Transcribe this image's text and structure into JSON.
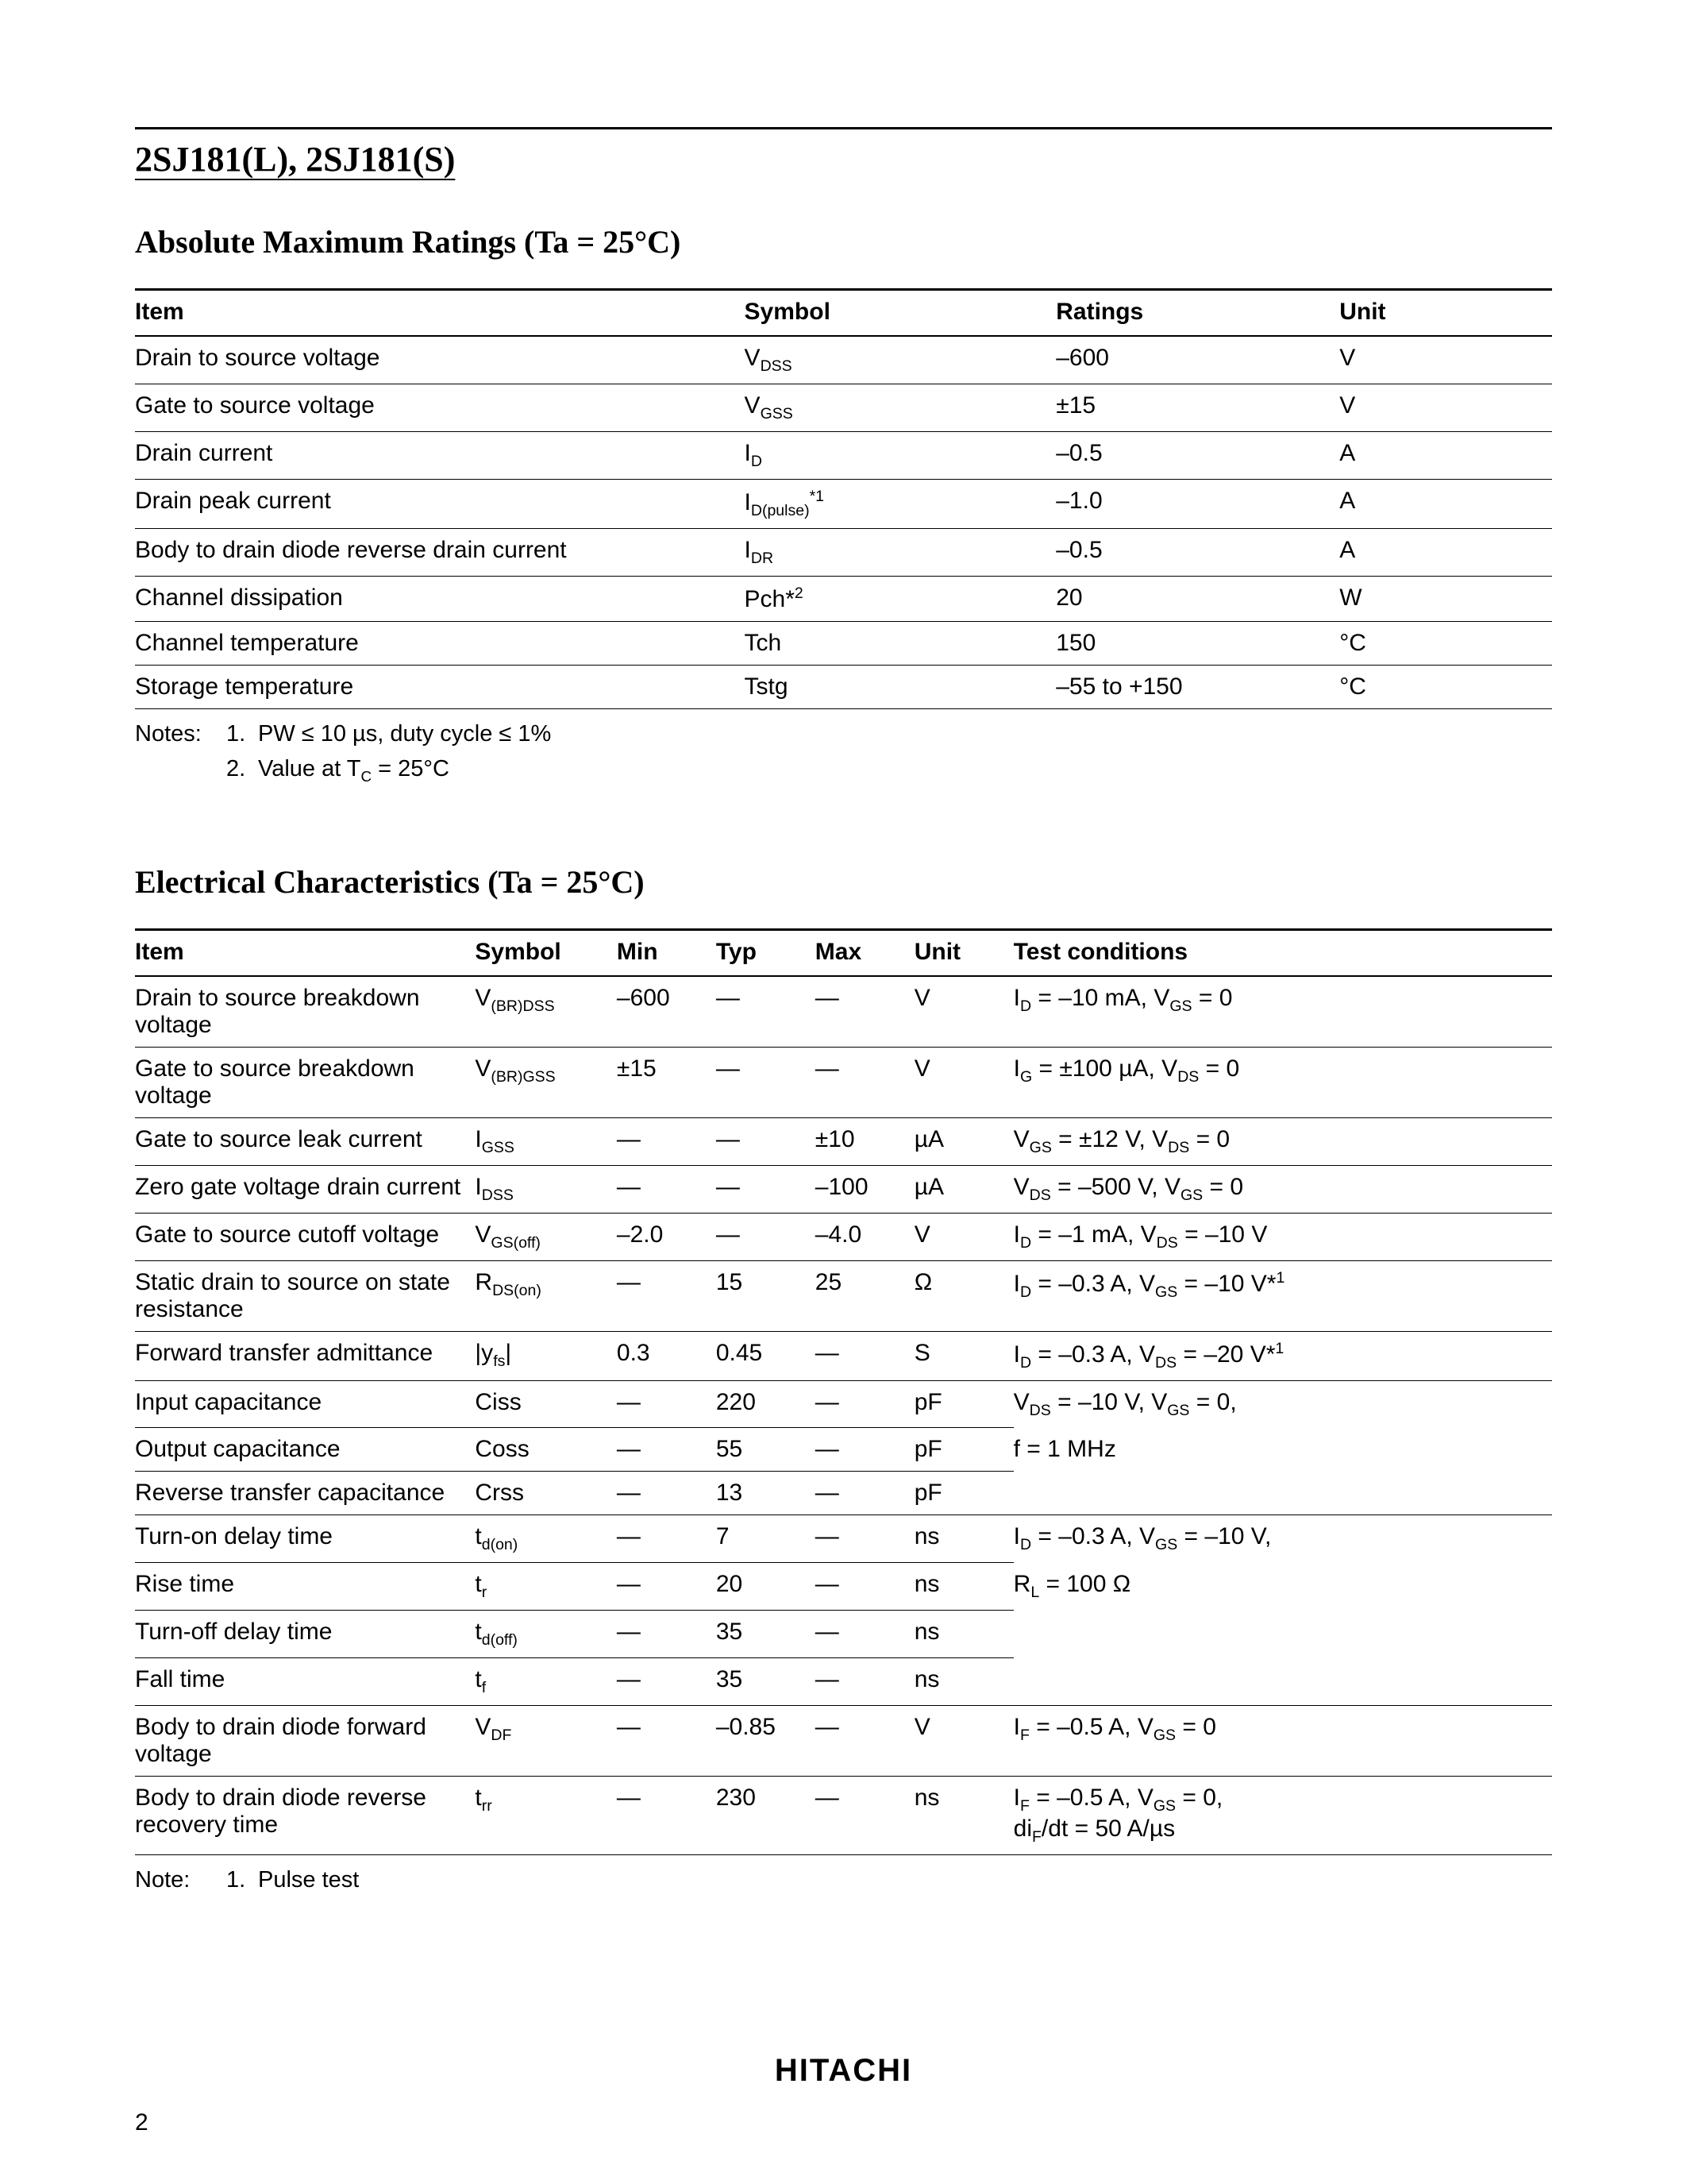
{
  "page": {
    "part_title": "2SJ181(L), 2SJ181(S)",
    "brand": "HITACHI",
    "page_number": "2"
  },
  "section1": {
    "title_bold": "Absolute Maximum Ratings",
    "title_rest": " (Ta = 25°C)",
    "headers": {
      "item": "Item",
      "symbol": "Symbol",
      "ratings": "Ratings",
      "unit": "Unit"
    },
    "rows": [
      {
        "item": "Drain to source voltage",
        "symbol_html": "V<span class='sub'>DSS</span>",
        "ratings": "–600",
        "unit": "V"
      },
      {
        "item": "Gate to source voltage",
        "symbol_html": "V<span class='sub'>GSS</span>",
        "ratings": "±15",
        "unit": "V"
      },
      {
        "item": "Drain current",
        "symbol_html": "I<span class='sub'>D</span>",
        "ratings": "–0.5",
        "unit": "A"
      },
      {
        "item": "Drain peak current",
        "symbol_html": "I<span class='sub'>D(pulse)</span><span class='sup'>*1</span>",
        "ratings": "–1.0",
        "unit": "A"
      },
      {
        "item": "Body to drain diode reverse drain current",
        "symbol_html": "I<span class='sub'>DR</span>",
        "ratings": "–0.5",
        "unit": "A"
      },
      {
        "item": "Channel dissipation",
        "symbol_html": "Pch*<span class='sup'>2</span>",
        "ratings": "20",
        "unit": "W"
      },
      {
        "item": "Channel temperature",
        "symbol_html": "Tch",
        "ratings": "150",
        "unit": "°C"
      },
      {
        "item": "Storage temperature",
        "symbol_html": "Tstg",
        "ratings": "–55 to +150",
        "unit": "°C"
      }
    ],
    "notes_label": "Notes:",
    "notes": [
      {
        "n": "1.",
        "text_html": "PW ≤ 10 µs, duty cycle ≤ 1%"
      },
      {
        "n": "2.",
        "text_html": "Value at T<span class='sub'>C</span> = 25°C"
      }
    ]
  },
  "section2": {
    "title_bold": "Electrical Characteristics",
    "title_rest": " (Ta = 25°C)",
    "headers": {
      "item": "Item",
      "symbol": "Symbol",
      "min": "Min",
      "typ": "Typ",
      "max": "Max",
      "unit": "Unit",
      "cond": "Test conditions"
    },
    "rows": [
      {
        "item": "Drain to source breakdown voltage",
        "symbol_html": "V<span class='sub'>(BR)DSS</span>",
        "min": "–600",
        "typ": "—",
        "max": "—",
        "unit": "V",
        "cond_html": "I<span class='sub'>D</span> = –10 mA, V<span class='sub'>GS</span> = 0",
        "cond_border": true
      },
      {
        "item": "Gate to source breakdown voltage",
        "symbol_html": "V<span class='sub'>(BR)GSS</span>",
        "min": "±15",
        "typ": "—",
        "max": "—",
        "unit": "V",
        "cond_html": "I<span class='sub'>G</span> = ±100 µA, V<span class='sub'>DS</span> = 0",
        "cond_border": true
      },
      {
        "item": "Gate to source leak current",
        "symbol_html": "I<span class='sub'>GSS</span>",
        "min": "—",
        "typ": "—",
        "max": "±10",
        "unit": "µA",
        "cond_html": "V<span class='sub'>GS</span> = ±12 V, V<span class='sub'>DS</span> = 0",
        "cond_border": true
      },
      {
        "item": "Zero gate voltage drain current",
        "symbol_html": "I<span class='sub'>DSS</span>",
        "min": "—",
        "typ": "—",
        "max": "–100",
        "unit": "µA",
        "cond_html": "V<span class='sub'>DS</span> = –500 V, V<span class='sub'>GS</span> = 0",
        "cond_border": true
      },
      {
        "item": "Gate to source cutoff voltage",
        "symbol_html": "V<span class='sub'>GS(off)</span>",
        "min": "–2.0",
        "typ": "—",
        "max": "–4.0",
        "unit": "V",
        "cond_html": "I<span class='sub'>D</span> = –1 mA, V<span class='sub'>DS</span> = –10 V",
        "cond_border": true
      },
      {
        "item": "Static drain to source on state resistance",
        "symbol_html": "R<span class='sub'>DS(on)</span>",
        "min": "—",
        "typ": "15",
        "max": "25",
        "unit": "Ω",
        "cond_html": "I<span class='sub'>D</span> = –0.3 A, V<span class='sub'>GS</span> = –10 V*<span class='sup'>1</span>",
        "cond_border": true
      },
      {
        "item": "Forward transfer admittance",
        "symbol_html": "|y<span class='sub'>fs</span>|",
        "min": "0.3",
        "typ": "0.45",
        "max": "—",
        "unit": "S",
        "cond_html": "I<span class='sub'>D</span> = –0.3 A, V<span class='sub'>DS</span> = –20 V*<span class='sup'>1</span>",
        "cond_border": true
      },
      {
        "item": "Input capacitance",
        "symbol_html": "Ciss",
        "min": "—",
        "typ": "220",
        "max": "—",
        "unit": "pF",
        "cond_html": "V<span class='sub'>DS</span> = –10 V, V<span class='sub'>GS</span> = 0,",
        "cond_border": false
      },
      {
        "item": "Output capacitance",
        "symbol_html": "Coss",
        "min": "—",
        "typ": "55",
        "max": "—",
        "unit": "pF",
        "cond_html": "f = 1 MHz",
        "cond_border": false
      },
      {
        "item": "Reverse transfer capacitance",
        "symbol_html": "Crss",
        "min": "—",
        "typ": "13",
        "max": "—",
        "unit": "pF",
        "cond_html": "",
        "cond_border": true
      },
      {
        "item": "Turn-on delay time",
        "symbol_html": "t<span class='sub'>d(on)</span>",
        "min": "—",
        "typ": "7",
        "max": "—",
        "unit": "ns",
        "cond_html": "I<span class='sub'>D</span> = –0.3 A, V<span class='sub'>GS</span> = –10 V,",
        "cond_border": false
      },
      {
        "item": "Rise time",
        "symbol_html": "t<span class='sub'>r</span>",
        "min": "—",
        "typ": "20",
        "max": "—",
        "unit": "ns",
        "cond_html": "R<span class='sub'>L</span> = 100 Ω",
        "cond_border": false
      },
      {
        "item": "Turn-off delay time",
        "symbol_html": "t<span class='sub'>d(off)</span>",
        "min": "—",
        "typ": "35",
        "max": "—",
        "unit": "ns",
        "cond_html": "",
        "cond_border": false
      },
      {
        "item": "Fall time",
        "symbol_html": "t<span class='sub'>f</span>",
        "min": "—",
        "typ": "35",
        "max": "—",
        "unit": "ns",
        "cond_html": "",
        "cond_border": true
      },
      {
        "item": "Body to drain diode forward voltage",
        "symbol_html": "V<span class='sub'>DF</span>",
        "min": "—",
        "typ": "–0.85",
        "max": "—",
        "unit": "V",
        "cond_html": "I<span class='sub'>F</span> = –0.5 A, V<span class='sub'>GS</span> = 0",
        "cond_border": true
      },
      {
        "item": "Body to drain diode reverse recovery time",
        "symbol_html": "t<span class='sub'>rr</span>",
        "min": "—",
        "typ": "230",
        "max": "—",
        "unit": "ns",
        "cond_html": "I<span class='sub'>F</span> = –0.5 A, V<span class='sub'>GS</span> = 0,<br>di<span class='sub'>F</span>/dt = 50 A/µs",
        "cond_border": true
      }
    ],
    "notes_label": "Note:",
    "notes": [
      {
        "n": "1.",
        "text_html": "Pulse test"
      }
    ]
  }
}
